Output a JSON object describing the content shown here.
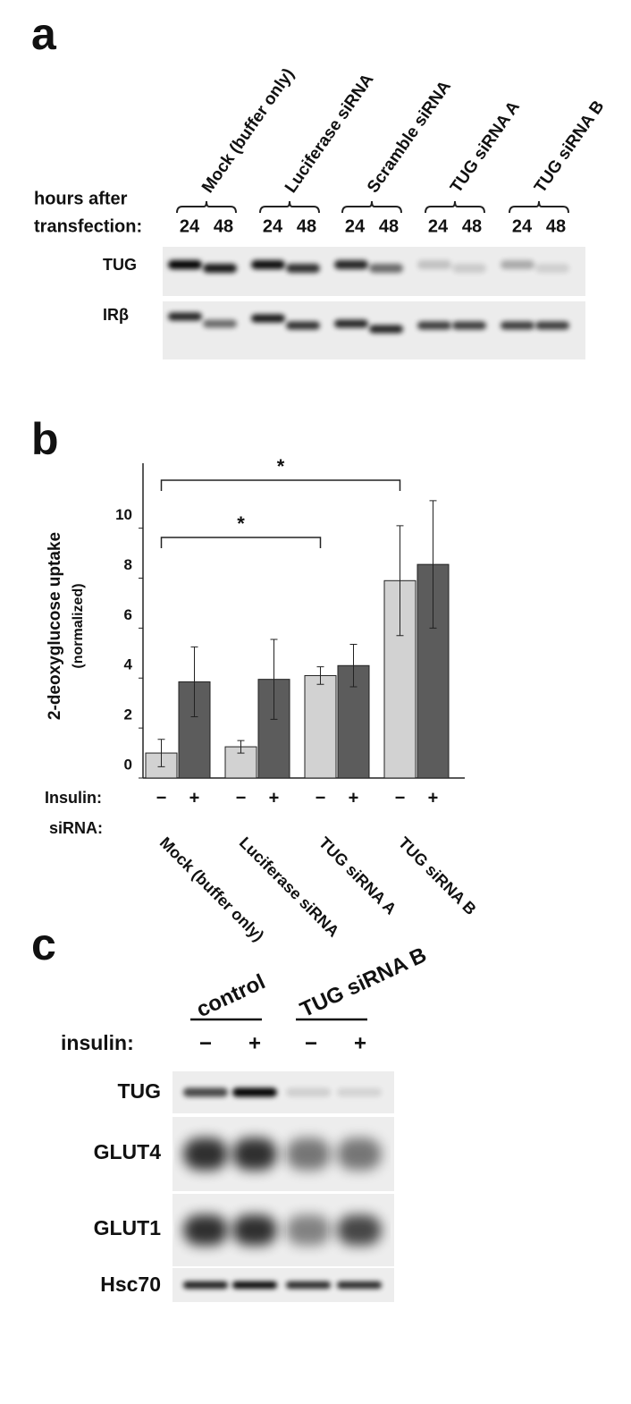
{
  "panel_a": {
    "label": "a",
    "hours_label": [
      "hours after",
      "transfection:"
    ],
    "groups": [
      {
        "name": "Mock (buffer only)",
        "hours": [
          "24",
          "48"
        ]
      },
      {
        "name": "Luciferase siRNA",
        "hours": [
          "24",
          "48"
        ]
      },
      {
        "name": "Scramble siRNA",
        "hours": [
          "24",
          "48"
        ]
      },
      {
        "name": "TUG siRNA A",
        "hours": [
          "24",
          "48"
        ]
      },
      {
        "name": "TUG siRNA B",
        "hours": [
          "24",
          "48"
        ]
      }
    ],
    "blots": [
      "TUG",
      "IRβ"
    ]
  },
  "panel_b_label": "b",
  "chart_data": {
    "type": "bar",
    "ylabel": "2-deoxyglucose uptake",
    "ylabel_sub": "(normalized)",
    "insulin_label": "Insulin:",
    "sirna_label": "siRNA:",
    "categories": [
      "Mock (buffer only)",
      "Luciferase siRNA",
      "TUG siRNA A",
      "TUG siRNA B"
    ],
    "series": [
      {
        "name": "−",
        "color": "#d2d2d2",
        "values": [
          1.0,
          1.25,
          4.1,
          7.9
        ],
        "errors": [
          0.55,
          0.25,
          0.35,
          2.2
        ]
      },
      {
        "name": "+",
        "color": "#5c5c5c",
        "values": [
          3.85,
          3.95,
          4.5,
          8.55
        ],
        "errors": [
          1.4,
          1.6,
          0.85,
          2.55
        ]
      }
    ],
    "ylim": [
      0,
      12.6
    ],
    "yticks": [
      0,
      2,
      4,
      6,
      8,
      10
    ],
    "significance": [
      {
        "label": "*",
        "from": "Mock (buffer only)",
        "to": "TUG siRNA A"
      },
      {
        "label": "*",
        "from": "Mock (buffer only)",
        "to": "TUG siRNA B"
      }
    ]
  },
  "panel_c": {
    "label": "c",
    "insulin_label": "insulin:",
    "groups": [
      {
        "name": "control",
        "insulin": [
          "−",
          "+"
        ]
      },
      {
        "name": "TUG siRNA B",
        "insulin": [
          "−",
          "+"
        ]
      }
    ],
    "blots": [
      "TUG",
      "GLUT4",
      "GLUT1",
      "Hsc70"
    ]
  }
}
